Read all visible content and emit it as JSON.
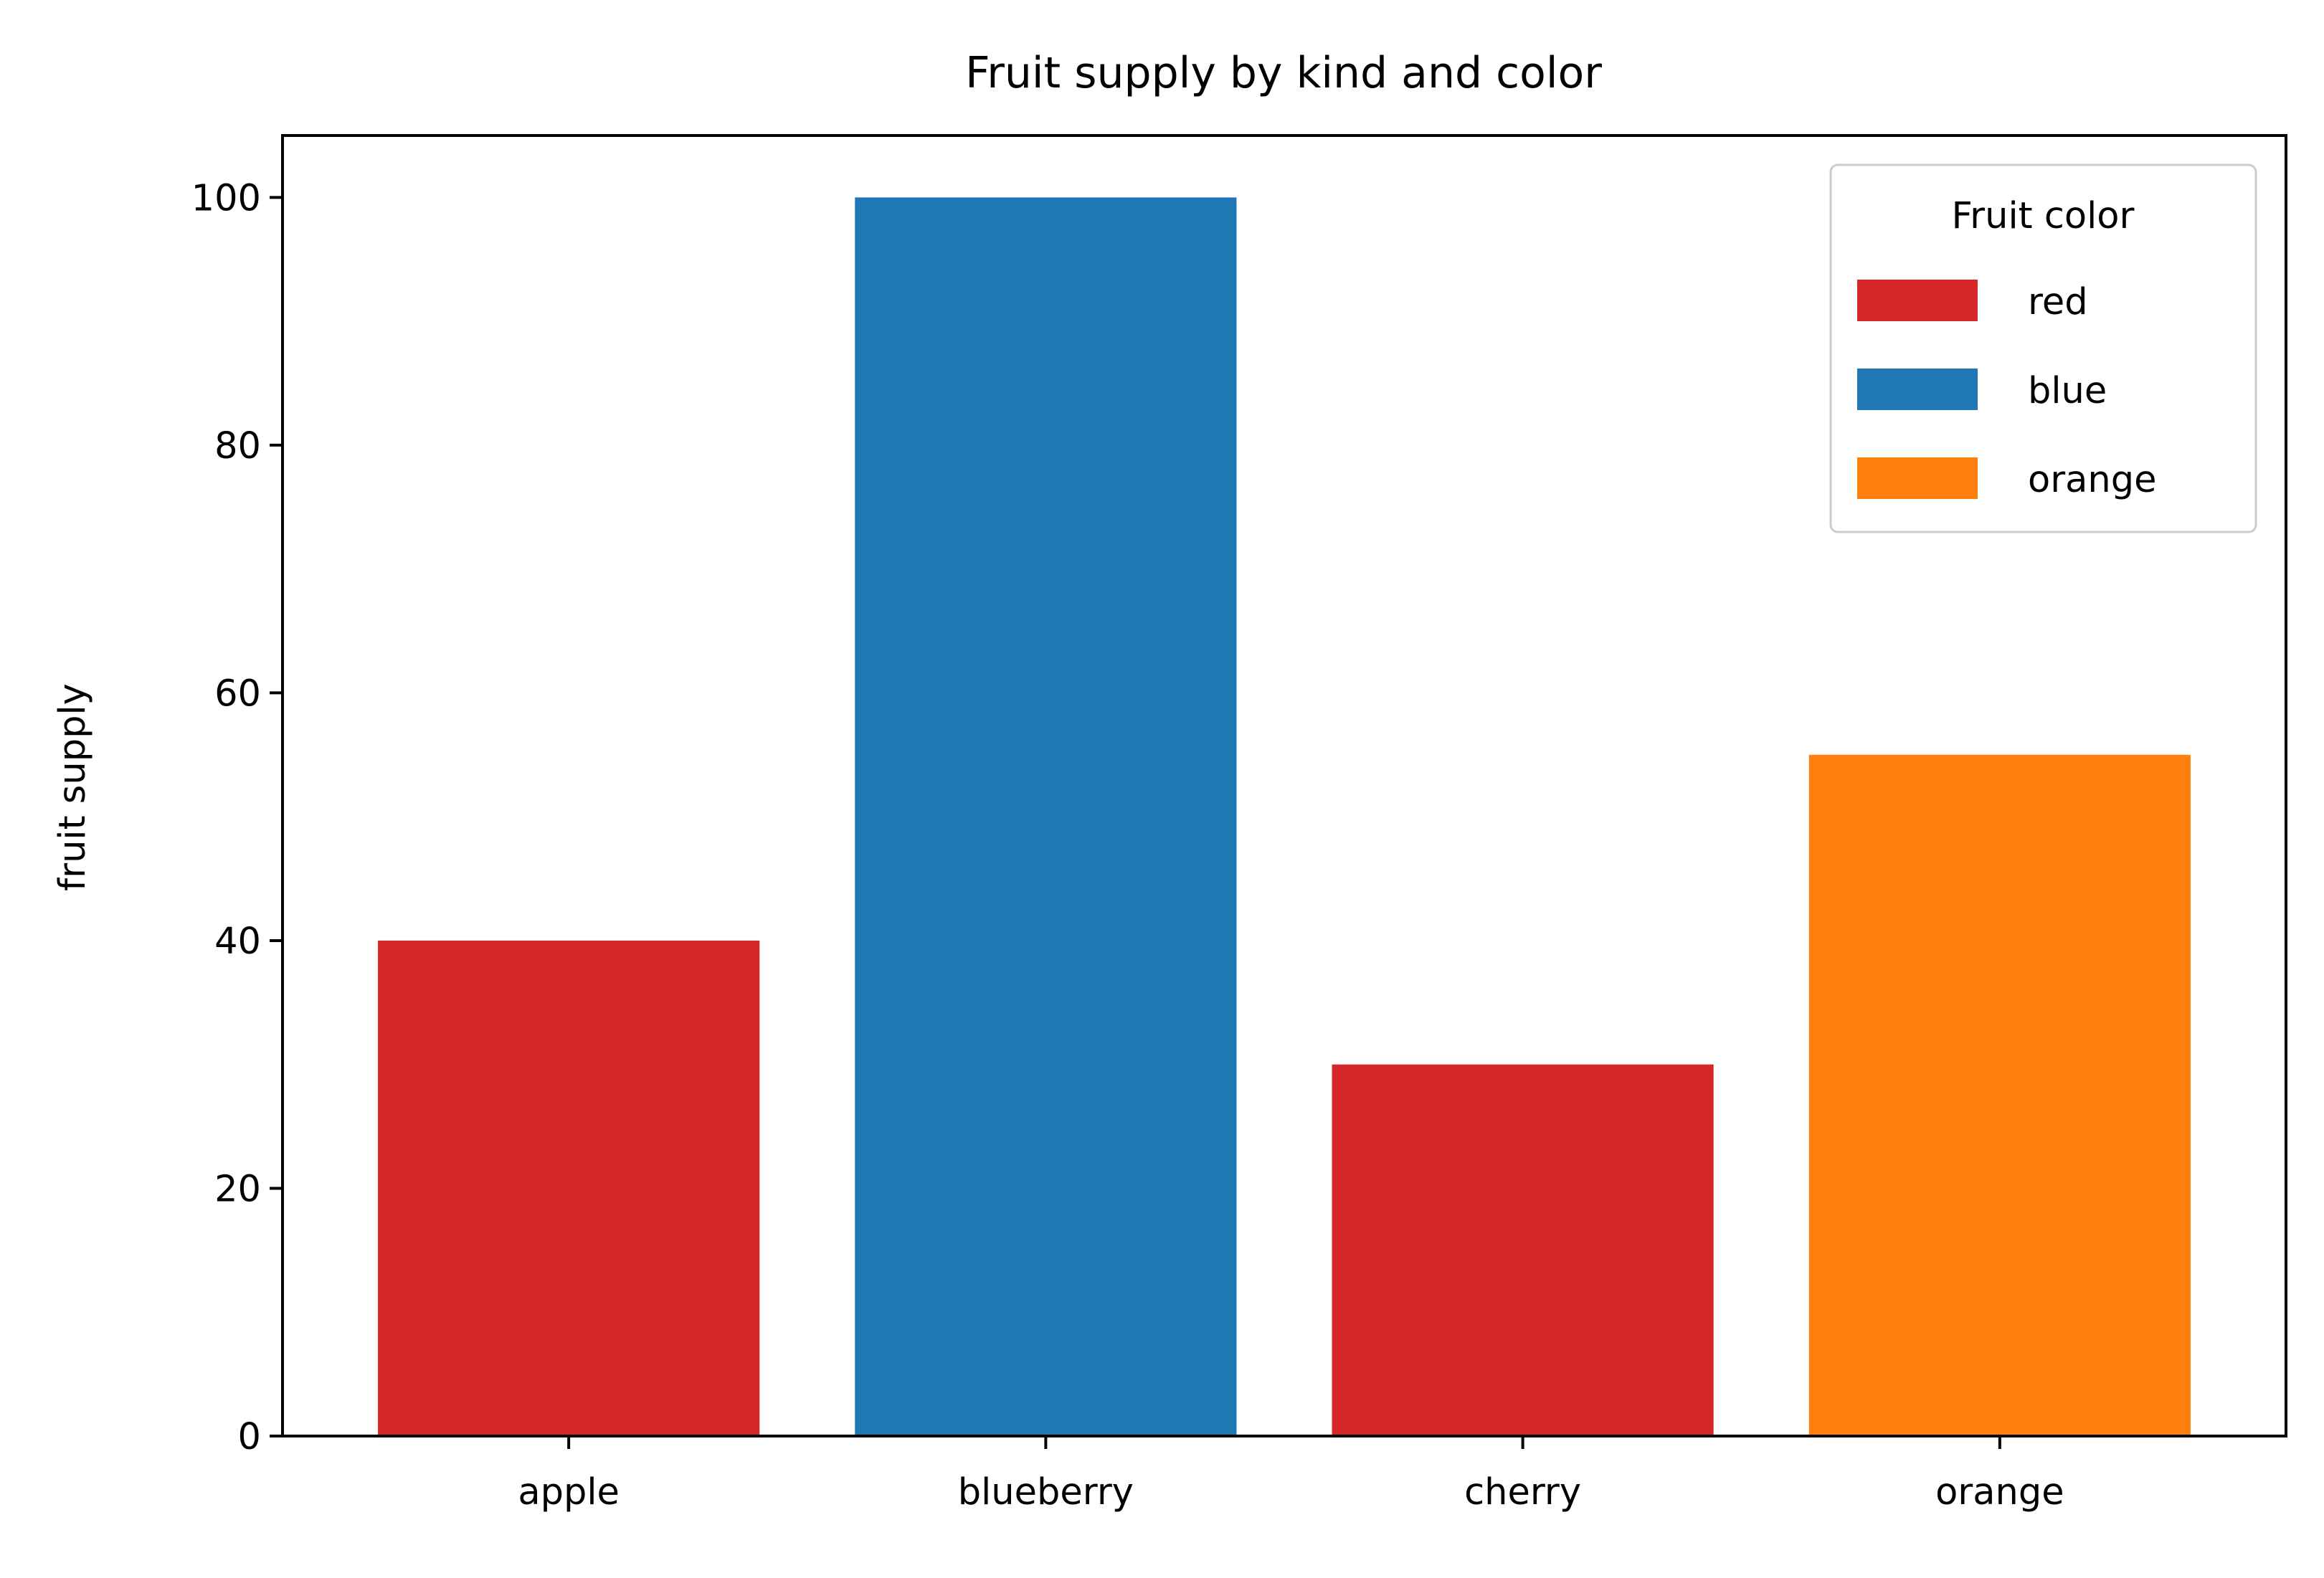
{
  "chart_data": {
    "type": "bar",
    "title": "Fruit supply by kind and color",
    "xlabel": "",
    "ylabel": "fruit supply",
    "categories": [
      "apple",
      "blueberry",
      "cherry",
      "orange"
    ],
    "values": [
      40,
      100,
      30,
      55
    ],
    "bar_colors": [
      "#d62728",
      "#1f77b4",
      "#d62728",
      "#ff7f0e"
    ],
    "ylim": [
      0,
      105
    ],
    "yticks": [
      0,
      20,
      40,
      60,
      80,
      100
    ],
    "grid": false,
    "legend": {
      "title": "Fruit color",
      "placement": "top-right",
      "entries": [
        {
          "label": "red",
          "color": "#d62728"
        },
        {
          "label": "blue",
          "color": "#1f77b4"
        },
        {
          "label": "orange",
          "color": "#ff7f0e"
        }
      ]
    }
  }
}
